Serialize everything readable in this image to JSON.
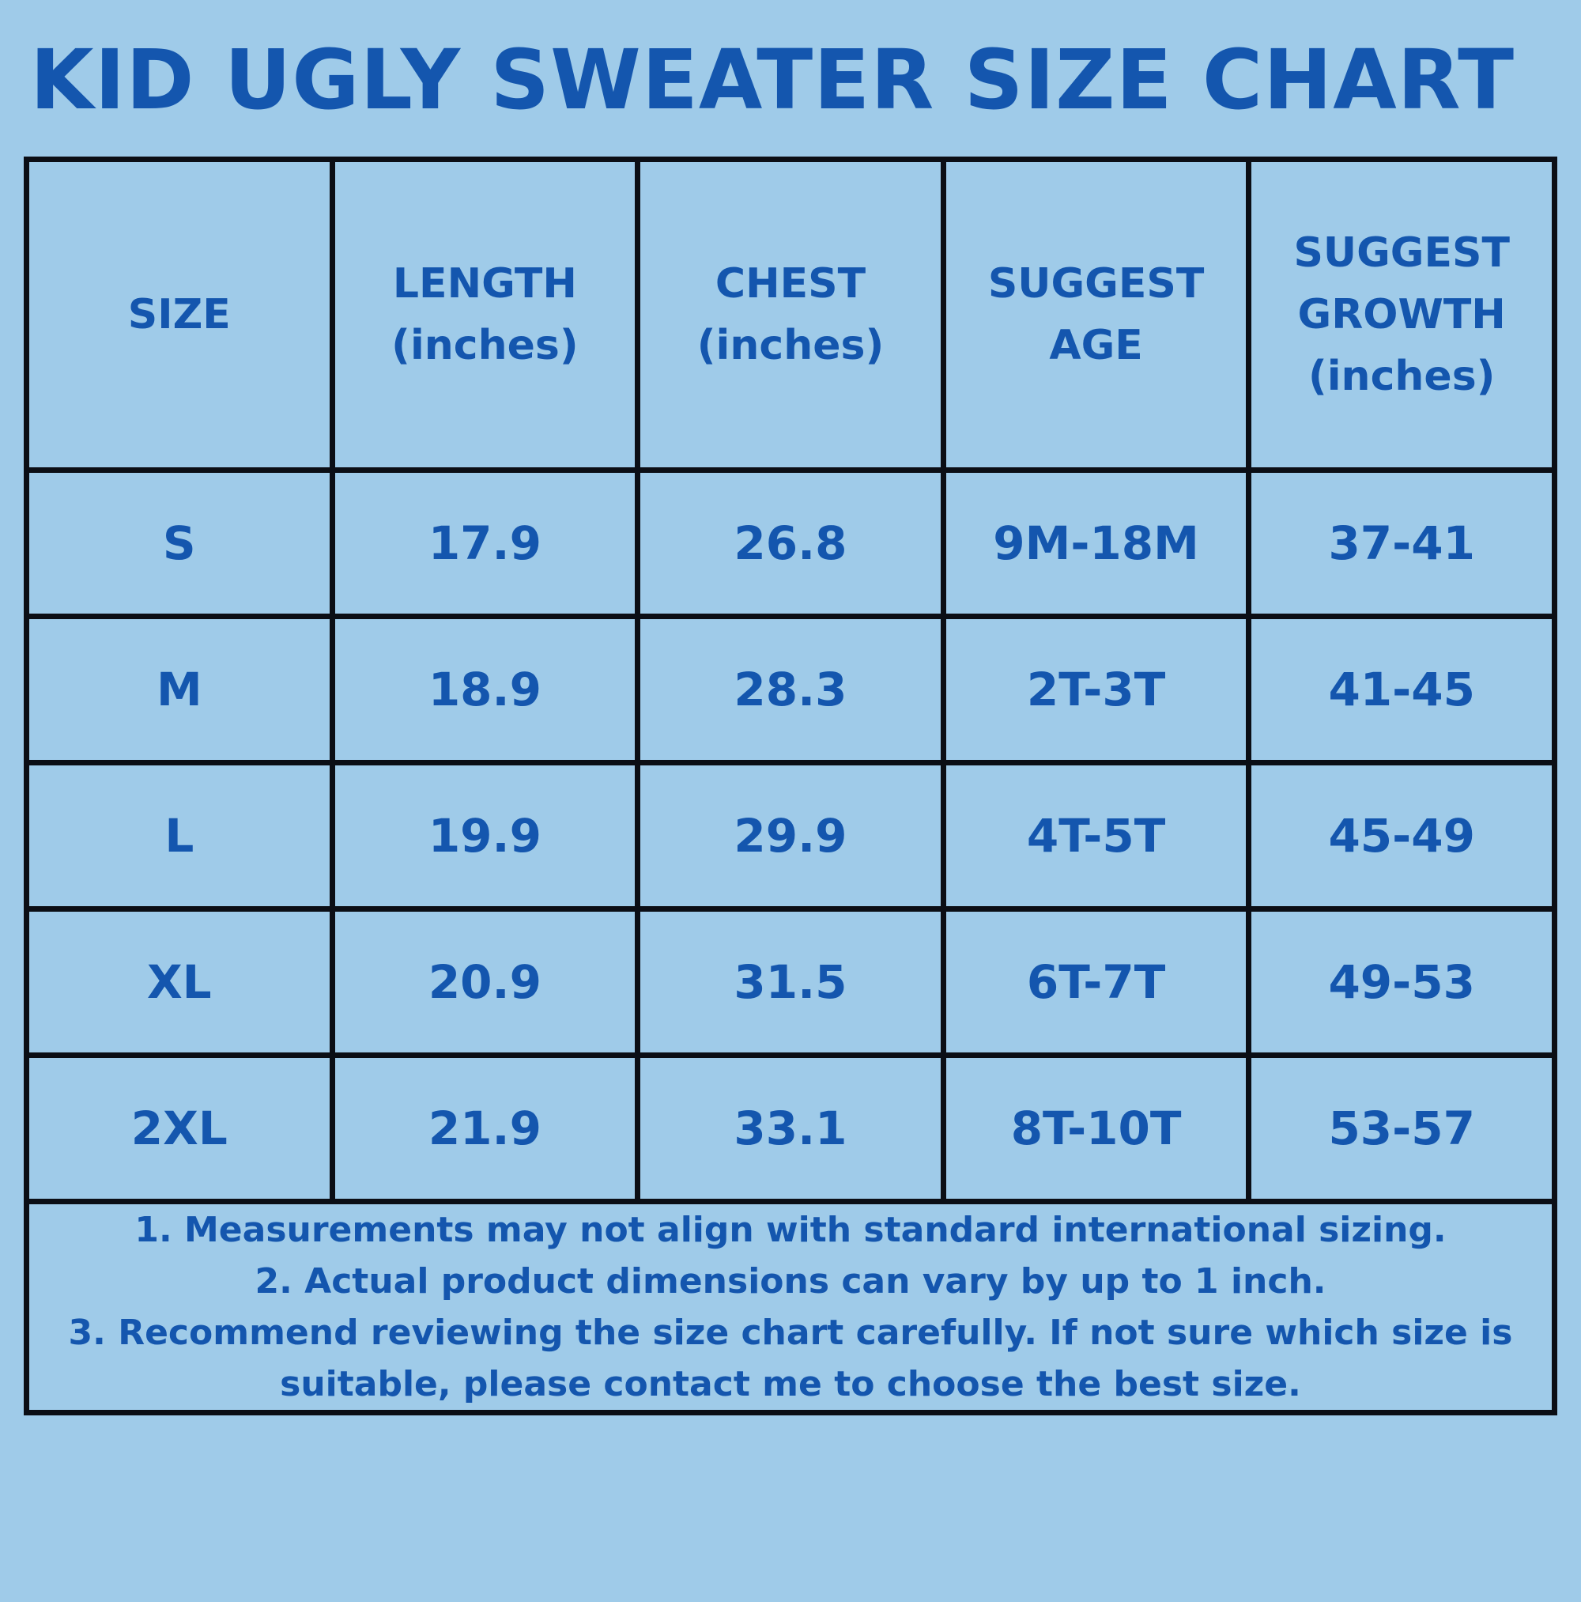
{
  "title": "KID UGLY SWEATER SIZE CHART",
  "colors": {
    "background": "#9fcbe9",
    "text_blue": "#1456ae",
    "border_black": "#0b0e15"
  },
  "table": {
    "headers": [
      {
        "lines": [
          "SIZE"
        ]
      },
      {
        "lines": [
          "LENGTH",
          "(inches)"
        ]
      },
      {
        "lines": [
          "CHEST",
          "(inches)"
        ]
      },
      {
        "lines": [
          "SUGGEST",
          "AGE"
        ]
      },
      {
        "lines": [
          "SUGGEST",
          "GROWTH",
          "(inches)"
        ]
      }
    ],
    "rows": [
      {
        "size": "S",
        "length": "17.9",
        "chest": "26.8",
        "suggest_age": "9M-18M",
        "suggest_growth": "37-41"
      },
      {
        "size": "M",
        "length": "18.9",
        "chest": "28.3",
        "suggest_age": "2T-3T",
        "suggest_growth": "41-45"
      },
      {
        "size": "L",
        "length": "19.9",
        "chest": "29.9",
        "suggest_age": "4T-5T",
        "suggest_growth": "45-49"
      },
      {
        "size": "XL",
        "length": "20.9",
        "chest": "31.5",
        "suggest_age": "6T-7T",
        "suggest_growth": "49-53"
      },
      {
        "size": "2XL",
        "length": "21.9",
        "chest": "33.1",
        "suggest_age": "8T-10T",
        "suggest_growth": "53-57"
      }
    ],
    "notes": [
      "1. Measurements may not align with standard international sizing.",
      "2. Actual product dimensions can vary by up to 1 inch.",
      "3. Recommend reviewing the size chart carefully. If not sure which size is suitable, please contact me to choose the best size."
    ]
  }
}
